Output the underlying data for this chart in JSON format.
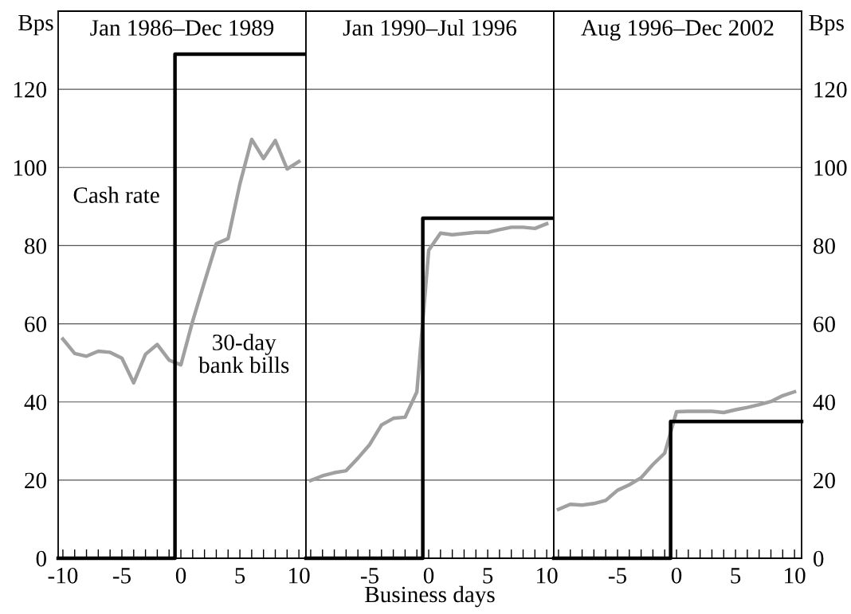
{
  "chart_data": [
    {
      "type": "line",
      "title": "Jan 1986–Dec 1989",
      "ylabel": "Bps",
      "xlim": [
        -10.4,
        10.6
      ],
      "ylim": [
        0,
        140
      ],
      "yticks": [
        0,
        20,
        40,
        60,
        80,
        100,
        120
      ],
      "grid": "y",
      "legend": false,
      "line_style": "solid",
      "marker": "none",
      "xticks": [
        -10,
        {
          "value": -9,
          "label": null
        },
        {
          "value": -8,
          "label": null
        },
        {
          "value": -7,
          "label": null
        },
        {
          "value": -6,
          "label": null
        },
        -5,
        {
          "value": -4,
          "label": null
        },
        {
          "value": -3,
          "label": null
        },
        {
          "value": -2,
          "label": null
        },
        {
          "value": -1,
          "label": null
        },
        0,
        {
          "value": 1,
          "label": null
        },
        {
          "value": 2,
          "label": null
        },
        {
          "value": 3,
          "label": null
        },
        {
          "value": 4,
          "label": null
        },
        5,
        {
          "value": 6,
          "label": null
        },
        {
          "value": 7,
          "label": null
        },
        {
          "value": 8,
          "label": null
        },
        {
          "value": 9,
          "label": null
        },
        10
      ],
      "annotations": [
        "Cash rate",
        "30-day\nbank bills"
      ],
      "series": [
        {
          "color": "#a0a0a0",
          "x": [
            -10,
            -9,
            -8,
            -7,
            -6,
            -5,
            -4,
            -3,
            -2,
            -1,
            0,
            1,
            2,
            3,
            4,
            5,
            6,
            7,
            8,
            9,
            10
          ],
          "values": [
            56.1,
            52.4,
            51.7,
            53.0,
            52.7,
            51.2,
            44.9,
            52.2,
            54.7,
            50.7,
            49.5,
            60.7,
            70.7,
            80.5,
            81.8,
            95.8,
            107.2,
            102.3,
            106.9,
            99.6,
            101.5
          ]
        },
        {
          "color": "#000000",
          "x": [
            -10.4,
            -0.5,
            -0.5,
            10.6
          ],
          "values": [
            0,
            0,
            129,
            129
          ]
        }
      ]
    },
    {
      "type": "line",
      "title": "Jan 1990–Jul 1996",
      "xlabel": "Business days",
      "xlim": [
        -10.4,
        10.6
      ],
      "ylim": [
        0,
        140
      ],
      "yticks": [
        0,
        20,
        40,
        60,
        80,
        100,
        120
      ],
      "grid": "y",
      "legend": false,
      "tick_labels": "x",
      "line_style": "solid",
      "marker": "none",
      "xticks": [
        {
          "value": -10,
          "label": null
        },
        {
          "value": -9,
          "label": null
        },
        {
          "value": -8,
          "label": null
        },
        {
          "value": -7,
          "label": null
        },
        {
          "value": -6,
          "label": null
        },
        -5,
        {
          "value": -4,
          "label": null
        },
        {
          "value": -3,
          "label": null
        },
        {
          "value": -2,
          "label": null
        },
        {
          "value": -1,
          "label": null
        },
        0,
        {
          "value": 1,
          "label": null
        },
        {
          "value": 2,
          "label": null
        },
        {
          "value": 3,
          "label": null
        },
        {
          "value": 4,
          "label": null
        },
        5,
        {
          "value": 6,
          "label": null
        },
        {
          "value": 7,
          "label": null
        },
        {
          "value": 8,
          "label": null
        },
        {
          "value": 9,
          "label": null
        },
        10
      ],
      "series": [
        {
          "color": "#a0a0a0",
          "x": [
            -10,
            -9,
            -8,
            -7,
            -6,
            -5,
            -4,
            -3,
            -2,
            -1,
            0,
            1,
            2,
            3,
            4,
            5,
            6,
            7,
            8,
            9,
            10
          ],
          "values": [
            19.9,
            21.1,
            21.9,
            22.4,
            25.6,
            29.1,
            34.1,
            35.8,
            36.1,
            42.6,
            78.8,
            83.2,
            82.8,
            83.1,
            83.4,
            83.4,
            84.1,
            84.7,
            84.7,
            84.4,
            85.6
          ]
        },
        {
          "color": "#000000",
          "x": [
            -10.4,
            -0.5,
            -0.5,
            10.6
          ],
          "values": [
            0,
            0,
            87,
            87
          ]
        }
      ]
    },
    {
      "type": "line",
      "title": "Aug 1996–Dec 2002",
      "y2label": "Bps",
      "xlim": [
        -10.4,
        10.6
      ],
      "y2lim": [
        0,
        140
      ],
      "y2ticks": [
        0,
        20,
        40,
        60,
        80,
        100,
        120
      ],
      "grid": "y",
      "legend": false,
      "line_style": "solid",
      "marker": "none",
      "xticks": [
        {
          "value": -10,
          "label": null
        },
        {
          "value": -9,
          "label": null
        },
        {
          "value": -8,
          "label": null
        },
        {
          "value": -7,
          "label": null
        },
        {
          "value": -6,
          "label": null
        },
        -5,
        {
          "value": -4,
          "label": null
        },
        {
          "value": -3,
          "label": null
        },
        {
          "value": -2,
          "label": null
        },
        {
          "value": -1,
          "label": null
        },
        0,
        {
          "value": 1,
          "label": null
        },
        {
          "value": 2,
          "label": null
        },
        {
          "value": 3,
          "label": null
        },
        {
          "value": 4,
          "label": null
        },
        5,
        {
          "value": 6,
          "label": null
        },
        {
          "value": 7,
          "label": null
        },
        {
          "value": 8,
          "label": null
        },
        {
          "value": 9,
          "label": null
        },
        10
      ],
      "series": [
        {
          "axis": "y2",
          "color": "#a0a0a0",
          "x": [
            -10,
            -9,
            -8,
            -7,
            -6,
            -5,
            -4,
            -3,
            -2,
            -1,
            0,
            1,
            2,
            3,
            4,
            5,
            6,
            7,
            8,
            9,
            10
          ],
          "values": [
            12.5,
            13.8,
            13.6,
            14.0,
            14.8,
            17.4,
            18.8,
            20.6,
            24.0,
            26.9,
            37.5,
            37.6,
            37.6,
            37.6,
            37.3,
            38.0,
            38.6,
            39.3,
            40.1,
            41.6,
            42.6
          ]
        },
        {
          "axis": "y2",
          "color": "#000000",
          "x": [
            -10.4,
            -0.5,
            -0.5,
            10.6
          ],
          "values": [
            0,
            0,
            35,
            35
          ]
        }
      ]
    }
  ]
}
